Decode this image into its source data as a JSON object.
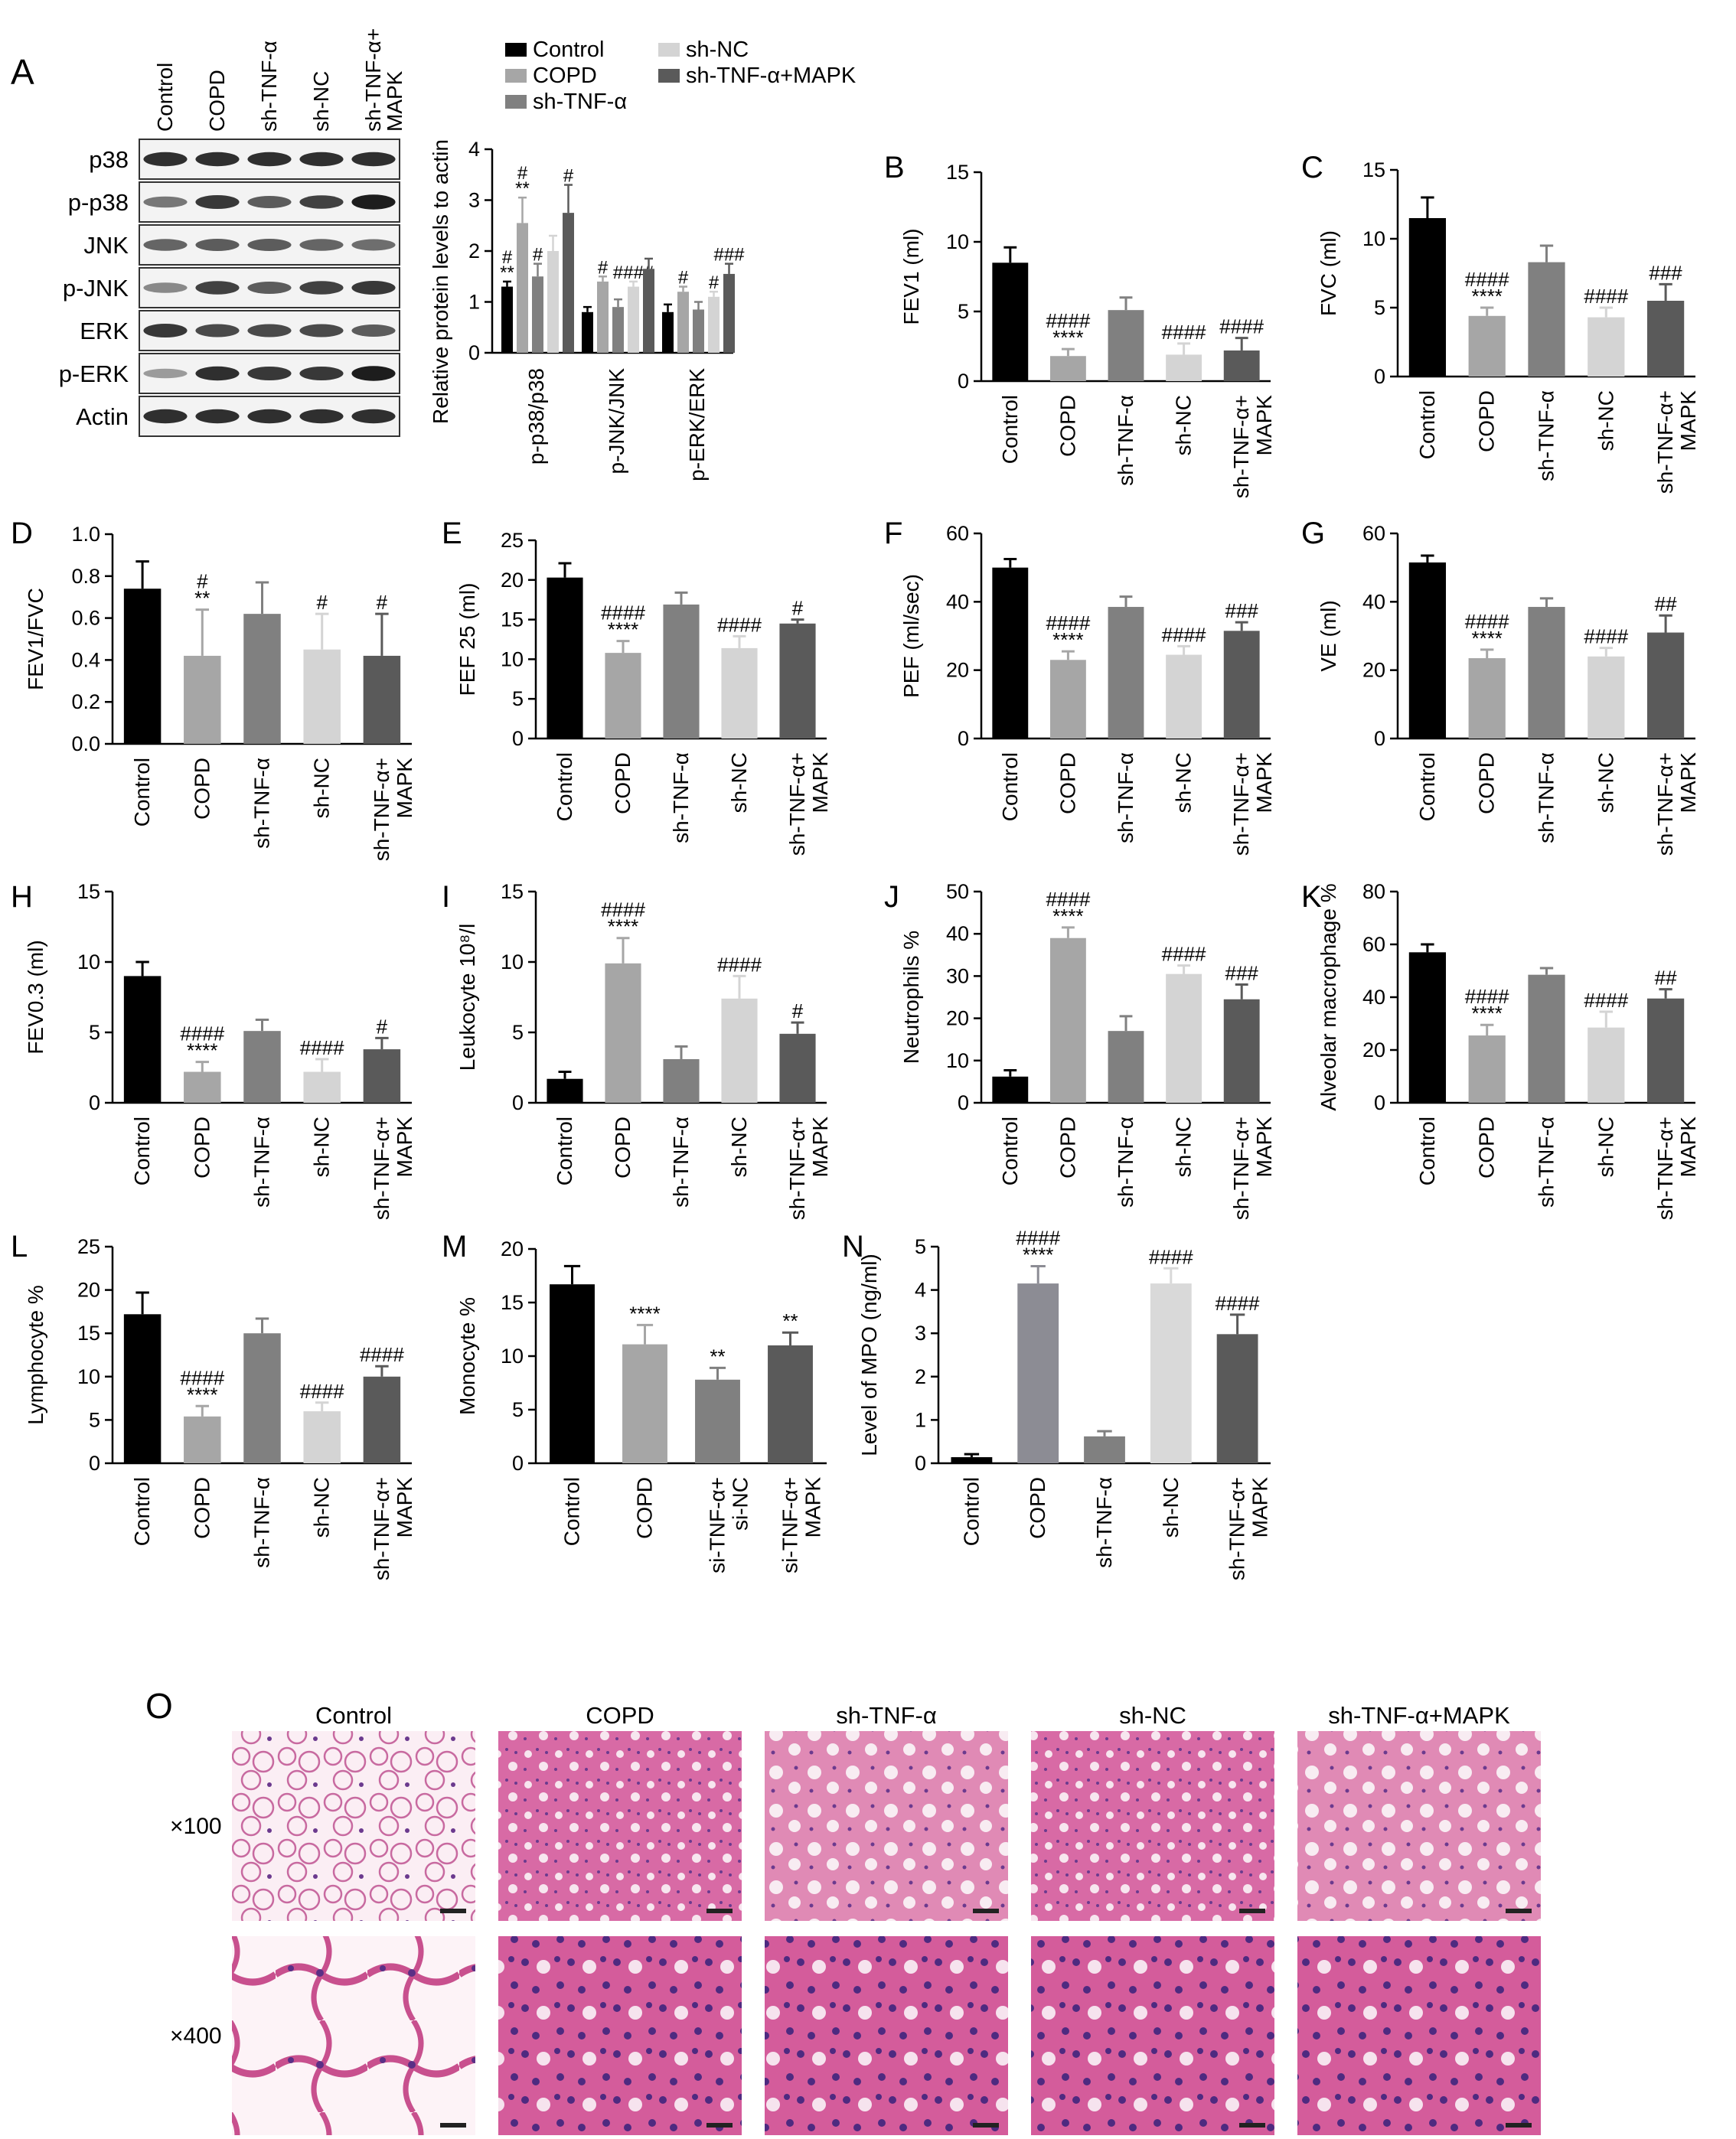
{
  "colors": {
    "control": "#000000",
    "copd": "#a6a6a6",
    "sh_tnf": "#808080",
    "sh_nc": "#d4d4d4",
    "sh_tnf_mapk": "#5a5a5a",
    "panel_n_shnc": "#d9d9d9",
    "he_pink": "#d96fa8",
    "he_purple": "#7b3f9a"
  },
  "panel_a": {
    "label": "A",
    "lane_labels": [
      "Control",
      "COPD",
      "sh-TNF-α",
      "sh-NC",
      "sh-TNF-α+\nMAPK"
    ],
    "blot_rows": [
      "p38",
      "p-p38",
      "JNK",
      "p-JNK",
      "ERK",
      "p-ERK",
      "Actin"
    ],
    "blot_intensity": [
      [
        0.85,
        0.85,
        0.85,
        0.85,
        0.85
      ],
      [
        0.45,
        0.8,
        0.6,
        0.75,
        0.95
      ],
      [
        0.55,
        0.6,
        0.6,
        0.55,
        0.5
      ],
      [
        0.35,
        0.75,
        0.6,
        0.75,
        0.8
      ],
      [
        0.8,
        0.7,
        0.7,
        0.7,
        0.6
      ],
      [
        0.25,
        0.85,
        0.8,
        0.8,
        0.95
      ],
      [
        0.85,
        0.85,
        0.85,
        0.85,
        0.85
      ]
    ],
    "legend": [
      "Control",
      "COPD",
      "sh-TNF-α",
      "sh-NC",
      "sh-TNF-α+MAPK"
    ]
  },
  "chart_data": [
    {
      "id": "A",
      "type": "bar",
      "ylabel": "Relative protein levels to actin",
      "ylim": [
        0,
        4
      ],
      "yticks": [
        0,
        1,
        2,
        3,
        4
      ],
      "categories": [
        "p-p38/p38",
        "p-JNK/JNK",
        "p-ERK/ERK"
      ],
      "series": [
        {
          "name": "Control",
          "values": [
            1.3,
            0.8,
            0.8
          ],
          "err": [
            0.1,
            0.1,
            0.15
          ]
        },
        {
          "name": "COPD",
          "values": [
            2.55,
            1.4,
            1.2
          ],
          "err": [
            0.5,
            0.1,
            0.1
          ]
        },
        {
          "name": "sh-TNF-α",
          "values": [
            1.5,
            0.9,
            0.85
          ],
          "err": [
            0.25,
            0.15,
            0.15
          ]
        },
        {
          "name": "sh-NC",
          "values": [
            2.0,
            1.3,
            1.1
          ],
          "err": [
            0.3,
            0.1,
            0.1
          ]
        },
        {
          "name": "sh-TNF-α+MAPK",
          "values": [
            2.75,
            1.65,
            1.55
          ],
          "err": [
            0.55,
            0.2,
            0.2
          ]
        }
      ],
      "annotations": [
        [
          "",
          "",
          "",
          "",
          ""
        ],
        [
          "#\n**",
          "#\n**",
          "#",
          "",
          "#"
        ],
        [
          "",
          "#",
          "",
          "####",
          ""
        ],
        [
          "",
          "#",
          "",
          "#",
          "###"
        ]
      ]
    },
    {
      "id": "B",
      "type": "bar",
      "ylabel": "FEV1 (ml)",
      "ylim": [
        0,
        15
      ],
      "yticks": [
        0,
        5,
        10,
        15
      ],
      "categories": [
        "Control",
        "COPD",
        "sh-TNF-α",
        "sh-NC",
        "sh-TNF-α+\nMAPK"
      ],
      "values": [
        8.5,
        1.8,
        5.1,
        1.9,
        2.2
      ],
      "err": [
        1.1,
        0.5,
        0.9,
        0.8,
        0.9
      ],
      "annotations": [
        "",
        "####\n****",
        "",
        "####",
        "####"
      ]
    },
    {
      "id": "C",
      "type": "bar",
      "ylabel": "FVC (ml)",
      "ylim": [
        0,
        15
      ],
      "yticks": [
        0,
        5,
        10,
        15
      ],
      "categories": [
        "Control",
        "COPD",
        "sh-TNF-α",
        "sh-NC",
        "sh-TNF-α+\nMAPK"
      ],
      "values": [
        11.5,
        4.4,
        8.3,
        4.3,
        5.5
      ],
      "err": [
        1.5,
        0.6,
        1.2,
        0.7,
        1.2
      ],
      "annotations": [
        "",
        "####\n****",
        "",
        "####",
        "###"
      ]
    },
    {
      "id": "D",
      "type": "bar",
      "ylabel": "FEV1/FVC",
      "ylim": [
        0,
        1.0
      ],
      "yticks": [
        "0.0",
        "0.2",
        "0.4",
        "0.6",
        "0.8",
        "1.0"
      ],
      "categories": [
        "Control",
        "COPD",
        "sh-TNF-α",
        "sh-NC",
        "sh-TNF-α+\nMAPK"
      ],
      "values": [
        0.74,
        0.42,
        0.62,
        0.45,
        0.42
      ],
      "err": [
        0.13,
        0.22,
        0.15,
        0.17,
        0.2
      ],
      "annotations": [
        "",
        "#\n**",
        "",
        "#",
        "#"
      ]
    },
    {
      "id": "E",
      "type": "bar",
      "ylabel": "FEF 25 (ml)",
      "ylim": [
        0,
        25
      ],
      "yticks": [
        0,
        5,
        10,
        15,
        20,
        25
      ],
      "categories": [
        "Control",
        "COPD",
        "sh-TNF-α",
        "sh-NC",
        "sh-TNF-α+\nMAPK"
      ],
      "values": [
        20.3,
        10.8,
        16.9,
        11.4,
        14.5
      ],
      "err": [
        1.8,
        1.5,
        1.5,
        1.5,
        0.5
      ],
      "annotations": [
        "",
        "####\n****",
        "",
        "####",
        "#"
      ]
    },
    {
      "id": "F",
      "type": "bar",
      "ylabel": "PEF (ml/sec)",
      "ylim": [
        0,
        60
      ],
      "yticks": [
        0,
        20,
        40,
        60
      ],
      "categories": [
        "Control",
        "COPD",
        "sh-TNF-α",
        "sh-NC",
        "sh-TNF-α+\nMAPK"
      ],
      "values": [
        50,
        23,
        38.5,
        24.5,
        31.5
      ],
      "err": [
        2.5,
        2.5,
        3.0,
        2.5,
        2.5
      ],
      "annotations": [
        "",
        "####\n****",
        "",
        "####",
        "###"
      ]
    },
    {
      "id": "G",
      "type": "bar",
      "ylabel": "VE (ml)",
      "ylim": [
        0,
        60
      ],
      "yticks": [
        0,
        20,
        40,
        60
      ],
      "categories": [
        "Control",
        "COPD",
        "sh-TNF-α",
        "sh-NC",
        "sh-TNF-α+\nMAPK"
      ],
      "values": [
        51.5,
        23.5,
        38.5,
        24,
        31
      ],
      "err": [
        2.0,
        2.5,
        2.5,
        2.5,
        5.0
      ],
      "annotations": [
        "",
        "####\n****",
        "",
        "####",
        "##"
      ]
    },
    {
      "id": "H",
      "type": "bar",
      "ylabel": "FEV0.3 (ml)",
      "ylim": [
        0,
        15
      ],
      "yticks": [
        0,
        5,
        10,
        15
      ],
      "categories": [
        "Control",
        "COPD",
        "sh-TNF-α",
        "sh-NC",
        "sh-TNF-α+\nMAPK"
      ],
      "values": [
        9.0,
        2.2,
        5.1,
        2.2,
        3.8
      ],
      "err": [
        1.0,
        0.7,
        0.8,
        0.9,
        0.8
      ],
      "annotations": [
        "",
        "####\n****",
        "",
        "####",
        "#"
      ]
    },
    {
      "id": "I",
      "type": "bar",
      "ylabel": "Leukocyte 10⁸/l",
      "ylim": [
        0,
        15
      ],
      "yticks": [
        0,
        5,
        10,
        15
      ],
      "categories": [
        "Control",
        "COPD",
        "sh-TNF-α",
        "sh-NC",
        "sh-TNF-α+\nMAPK"
      ],
      "values": [
        1.7,
        9.9,
        3.1,
        7.4,
        4.9
      ],
      "err": [
        0.5,
        1.8,
        0.9,
        1.6,
        0.8
      ],
      "annotations": [
        "",
        "####\n****",
        "",
        "####",
        "#"
      ]
    },
    {
      "id": "J",
      "type": "bar",
      "ylabel": "Neutrophils %",
      "ylim": [
        0,
        50
      ],
      "yticks": [
        0,
        10,
        20,
        30,
        40,
        50
      ],
      "categories": [
        "Control",
        "COPD",
        "sh-TNF-α",
        "sh-NC",
        "sh-TNF-α+\nMAPK"
      ],
      "values": [
        6.2,
        39,
        17,
        30.5,
        24.5
      ],
      "err": [
        1.5,
        2.5,
        3.5,
        2.0,
        3.5
      ],
      "annotations": [
        "",
        "####\n****",
        "",
        "####",
        "###"
      ]
    },
    {
      "id": "K",
      "type": "bar",
      "ylabel": "Alveolar macrophage %",
      "ylim": [
        0,
        80
      ],
      "yticks": [
        0,
        20,
        40,
        60,
        80
      ],
      "categories": [
        "Control",
        "COPD",
        "sh-TNF-α",
        "sh-NC",
        "sh-TNF-α+\nMAPK"
      ],
      "values": [
        57,
        25.5,
        48.5,
        28.5,
        39.5
      ],
      "err": [
        3.0,
        4.0,
        2.5,
        6.0,
        3.5
      ],
      "annotations": [
        "",
        "####\n****",
        "",
        "####",
        "##"
      ]
    },
    {
      "id": "L",
      "type": "bar",
      "ylabel": "Lymphocyte %",
      "ylim": [
        0,
        25
      ],
      "yticks": [
        0,
        5,
        10,
        15,
        20,
        25
      ],
      "categories": [
        "Control",
        "COPD",
        "sh-TNF-α",
        "sh-NC",
        "sh-TNF-α+\nMAPK"
      ],
      "values": [
        17.2,
        5.4,
        15.0,
        6.0,
        10.0
      ],
      "err": [
        2.5,
        1.2,
        1.7,
        1.0,
        1.2
      ],
      "annotations": [
        "",
        "####\n****",
        "",
        "####",
        "####"
      ]
    },
    {
      "id": "M",
      "type": "bar",
      "ylabel": "Monocyte %",
      "ylim": [
        0,
        20
      ],
      "yticks": [
        0,
        5,
        10,
        15,
        20
      ],
      "categories": [
        "Control",
        "COPD",
        "si-TNF-α+\nsi-NC",
        "si-TNF-α+\nMAPK"
      ],
      "values": [
        16.7,
        11.1,
        7.8,
        11.0
      ],
      "err": [
        1.7,
        1.8,
        1.1,
        1.2
      ],
      "annotations": [
        "",
        "****",
        "**",
        "**"
      ]
    },
    {
      "id": "N",
      "type": "bar",
      "ylabel": "Level of MPO (ng/ml)",
      "ylim": [
        0,
        5
      ],
      "yticks": [
        0,
        1,
        2,
        3,
        4,
        5
      ],
      "categories": [
        "Control",
        "COPD",
        "sh-TNF-α",
        "sh-NC",
        "sh-TNF-α+\nMAPK"
      ],
      "values": [
        0.14,
        4.15,
        0.62,
        4.15,
        2.98
      ],
      "err": [
        0.07,
        0.4,
        0.12,
        0.35,
        0.45
      ],
      "annotations": [
        "",
        "####\n****",
        "",
        "####",
        "####"
      ]
    }
  ],
  "panel_o": {
    "label": "O",
    "columns": [
      "Control",
      "COPD",
      "sh-TNF-α",
      "sh-NC",
      "sh-TNF-α+MAPK"
    ],
    "rows": [
      "×100",
      "×400"
    ]
  }
}
